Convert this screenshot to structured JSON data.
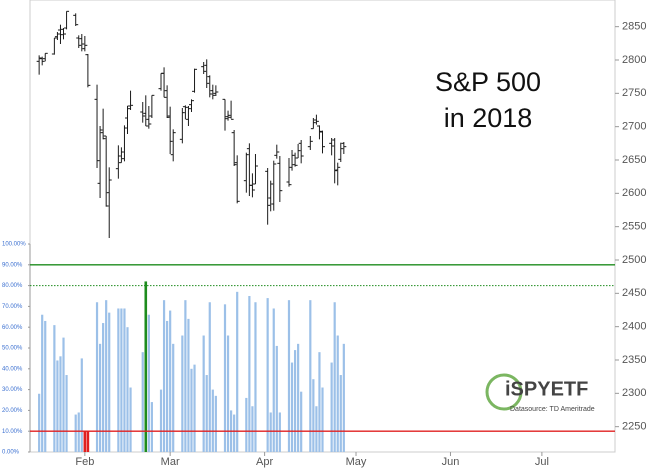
{
  "chart_data": {
    "type": "ohlc",
    "title_lines": [
      "S&P 500",
      "in 2018"
    ],
    "x": [
      16,
      17,
      18,
      21,
      22,
      23,
      24,
      25,
      28,
      29,
      30,
      31,
      32,
      35,
      36,
      37,
      38,
      39,
      42,
      43,
      44,
      45,
      46,
      50,
      51,
      52,
      53,
      56,
      57,
      58,
      59,
      60,
      63,
      64,
      65,
      66,
      67,
      70,
      71,
      72,
      73,
      74,
      77,
      78,
      79,
      80,
      81,
      84,
      85,
      86,
      87,
      91,
      92,
      93,
      94,
      95,
      98,
      99,
      100,
      101,
      102,
      105,
      106,
      107,
      108,
      109,
      112,
      113,
      114,
      115,
      116
    ],
    "xlim": [
      13,
      205
    ],
    "xticks": [
      {
        "value": 31,
        "label": "Feb"
      },
      {
        "value": 59,
        "label": "Mar"
      },
      {
        "value": 90,
        "label": "Apr"
      },
      {
        "value": 120,
        "label": "May"
      },
      {
        "value": 151,
        "label": "Jun"
      },
      {
        "value": 181,
        "label": "Jul"
      }
    ],
    "open": [
      2798,
      2802,
      2802,
      2809,
      2835,
      2845,
      2846,
      2848,
      2867,
      2833,
      2832,
      2817,
      2808,
      2741,
      2615,
      2691,
      2686,
      2601,
      2637,
      2646,
      2652,
      2713,
      2727,
      2722,
      2720,
      2711,
      2716,
      2757,
      2780,
      2754,
      2716,
      2658,
      2681,
      2730,
      2711,
      2733,
      2753,
      2790,
      2792,
      2775,
      2754,
      2750,
      2741,
      2715,
      2714,
      2691,
      2646,
      2619,
      2667,
      2612,
      2614,
      2633,
      2593,
      2584,
      2657,
      2645,
      2617,
      2639,
      2643,
      2653,
      2675,
      2670,
      2697,
      2710,
      2701,
      2692,
      2675,
      2680,
      2635,
      2651,
      2675
    ],
    "high": [
      2807,
      2805,
      2810,
      2833,
      2842,
      2853,
      2848,
      2873,
      2870,
      2837,
      2839,
      2836,
      2809,
      2763,
      2701,
      2727,
      2686,
      2639,
      2672,
      2669,
      2702,
      2731,
      2754,
      2737,
      2747,
      2731,
      2747,
      2780,
      2789,
      2762,
      2730,
      2696,
      2728,
      2732,
      2731,
      2741,
      2787,
      2797,
      2801,
      2777,
      2763,
      2762,
      2741,
      2724,
      2739,
      2695,
      2657,
      2661,
      2675,
      2630,
      2659,
      2638,
      2619,
      2649,
      2673,
      2656,
      2653,
      2665,
      2661,
      2674,
      2680,
      2686,
      2713,
      2718,
      2702,
      2694,
      2683,
      2683,
      2646,
      2676,
      2677
    ],
    "low": [
      2778,
      2792,
      2798,
      2808,
      2830,
      2824,
      2831,
      2846,
      2851,
      2818,
      2813,
      2813,
      2759,
      2638,
      2593,
      2681,
      2580,
      2533,
      2622,
      2646,
      2648,
      2689,
      2725,
      2706,
      2701,
      2697,
      2713,
      2754,
      2744,
      2713,
      2659,
      2648,
      2675,
      2711,
      2701,
      2722,
      2751,
      2779,
      2758,
      2744,
      2741,
      2746,
      2694,
      2709,
      2712,
      2641,
      2585,
      2601,
      2596,
      2594,
      2614,
      2553,
      2573,
      2574,
      2652,
      2587,
      2610,
      2634,
      2640,
      2653,
      2645,
      2665,
      2697,
      2703,
      2681,
      2660,
      2657,
      2615,
      2612,
      2647,
      2659
    ],
    "close": [
      2803,
      2798,
      2810,
      2833,
      2839,
      2838,
      2839,
      2873,
      2853,
      2822,
      2824,
      2822,
      2762,
      2649,
      2695,
      2682,
      2581,
      2620,
      2656,
      2662,
      2698,
      2731,
      2732,
      2716,
      2701,
      2704,
      2747,
      2780,
      2744,
      2714,
      2678,
      2691,
      2721,
      2729,
      2727,
      2739,
      2786,
      2783,
      2765,
      2749,
      2747,
      2752,
      2712,
      2717,
      2711,
      2643,
      2588,
      2658,
      2612,
      2605,
      2641,
      2582,
      2614,
      2644,
      2662,
      2604,
      2613,
      2657,
      2642,
      2664,
      2656,
      2678,
      2706,
      2708,
      2693,
      2670,
      2671,
      2634,
      2639,
      2667,
      2670
    ],
    "color": "#1a1a1a",
    "ylim": [
      2212,
      2890
    ],
    "yticks": [
      2250,
      2300,
      2350,
      2400,
      2450,
      2500,
      2550,
      2600,
      2650,
      2700,
      2750,
      2800,
      2850
    ],
    "breadth": {
      "type": "bar",
      "values": [
        28,
        66,
        63,
        61,
        44,
        46,
        55,
        37,
        18,
        19,
        45,
        10,
        10,
        72,
        52,
        62,
        73,
        67,
        69,
        69,
        69,
        60,
        31,
        48,
        82,
        66,
        24,
        30,
        73,
        63,
        68,
        52,
        56,
        73,
        64,
        40,
        42,
        56,
        37,
        72,
        30,
        27,
        71,
        56,
        20,
        18,
        77,
        26,
        75,
        22,
        72,
        74,
        19,
        69,
        51,
        19,
        73,
        43,
        49,
        52,
        29,
        73,
        35,
        22,
        48,
        31,
        43,
        72,
        56,
        37,
        52
      ],
      "color": "#9cc0e8",
      "ylim": [
        0,
        100
      ],
      "yticks": [
        {
          "value": 0,
          "label": "0.00%"
        },
        {
          "value": 10,
          "label": "10.00%"
        },
        {
          "value": 20,
          "label": "20.00%"
        },
        {
          "value": 30,
          "label": "30.00%"
        },
        {
          "value": 40,
          "label": "40.00%"
        },
        {
          "value": 50,
          "label": "50.00%"
        },
        {
          "value": 60,
          "label": "60.00%"
        },
        {
          "value": 70,
          "label": "70.00%"
        },
        {
          "value": 80,
          "label": "80.00%"
        },
        {
          "value": 90,
          "label": "90.00%"
        },
        {
          "value": 100,
          "label": "100.00%"
        }
      ],
      "reference_lines": [
        {
          "value": 90,
          "color": "#1e8c1e",
          "dashed": false
        },
        {
          "value": 80,
          "color": "#1e8c1e",
          "dashed": true
        },
        {
          "value": 10,
          "color": "#e02020",
          "dashed": false
        }
      ],
      "highlight": [
        {
          "max": 10,
          "color": "#e02020"
        },
        {
          "min": 80,
          "color": "#1e8c1e"
        }
      ]
    },
    "watermark": {
      "logo": "iSPYETF",
      "source": "Datasource: TD Ameritrade"
    }
  }
}
